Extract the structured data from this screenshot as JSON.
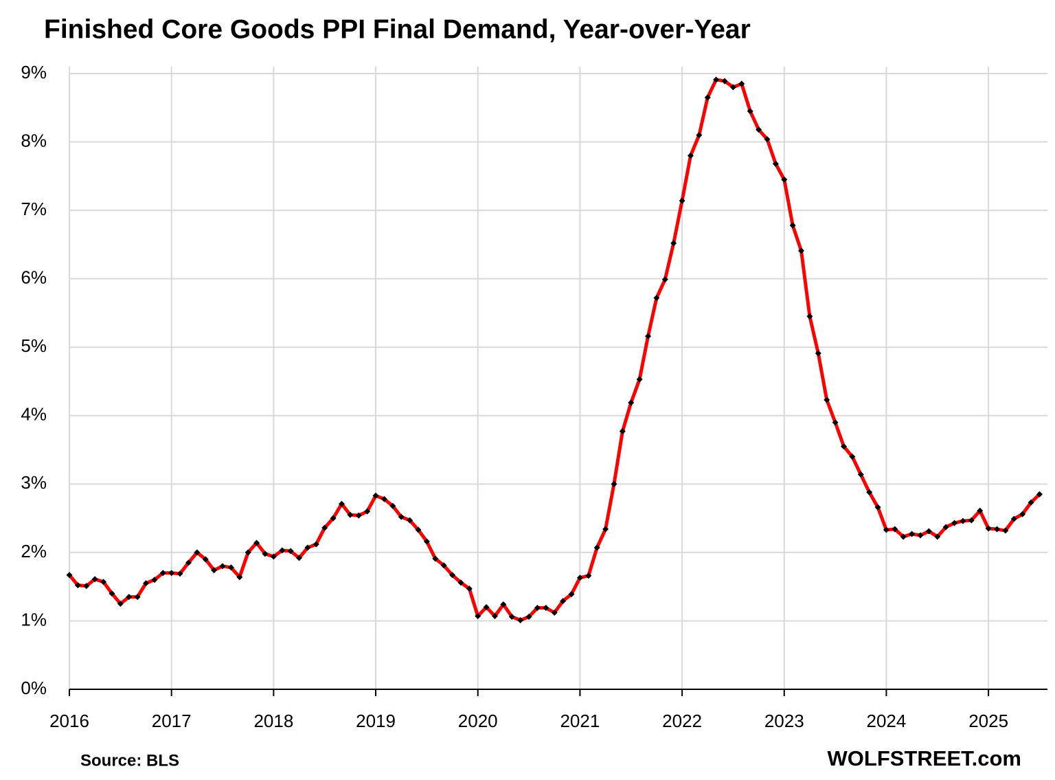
{
  "chart_data": {
    "type": "line",
    "title": "Finished Core Goods PPI Final Demand, Year-over-Year",
    "source": "Source: BLS",
    "credit": "WOLFSTREET.com",
    "categories": [
      "2016",
      null,
      null,
      null,
      null,
      null,
      null,
      null,
      null,
      null,
      null,
      null,
      "2017",
      null,
      null,
      null,
      null,
      null,
      null,
      null,
      null,
      null,
      null,
      null,
      "2018",
      null,
      null,
      null,
      null,
      null,
      null,
      null,
      null,
      null,
      null,
      null,
      "2019",
      null,
      null,
      null,
      null,
      null,
      null,
      null,
      null,
      null,
      null,
      null,
      "2020",
      null,
      null,
      null,
      null,
      null,
      null,
      null,
      null,
      null,
      null,
      null,
      "2021",
      null,
      null,
      null,
      null,
      null,
      null,
      null,
      null,
      null,
      null,
      null,
      "2022",
      null,
      null,
      null,
      null,
      null,
      null,
      null,
      null,
      null,
      null,
      null,
      "2023",
      null,
      null,
      null,
      null,
      null,
      null,
      null,
      null,
      null,
      null,
      null,
      "2024",
      null,
      null,
      null,
      null,
      null,
      null,
      null,
      null,
      null,
      null,
      null,
      "2025",
      null,
      null,
      null,
      null,
      null,
      null
    ],
    "values": [
      1.67,
      1.52,
      1.51,
      1.61,
      1.57,
      1.4,
      1.25,
      1.35,
      1.35,
      1.55,
      1.6,
      1.7,
      1.7,
      1.69,
      1.85,
      2.0,
      1.9,
      1.74,
      1.8,
      1.78,
      1.64,
      2.0,
      2.14,
      1.98,
      1.94,
      2.03,
      2.02,
      1.92,
      2.07,
      2.12,
      2.36,
      2.5,
      2.71,
      2.55,
      2.54,
      2.6,
      2.83,
      2.78,
      2.68,
      2.52,
      2.47,
      2.33,
      2.16,
      1.91,
      1.81,
      1.67,
      1.56,
      1.47,
      1.07,
      1.2,
      1.07,
      1.24,
      1.06,
      1.01,
      1.06,
      1.19,
      1.19,
      1.12,
      1.29,
      1.39,
      1.63,
      1.66,
      2.07,
      2.34,
      3.0,
      3.77,
      4.19,
      4.53,
      5.16,
      5.72,
      5.99,
      6.52,
      7.14,
      7.8,
      8.1,
      8.65,
      8.91,
      8.89,
      8.8,
      8.85,
      8.45,
      8.18,
      8.04,
      7.68,
      7.45,
      6.78,
      6.41,
      5.45,
      4.91,
      4.23,
      3.9,
      3.55,
      3.4,
      3.14,
      2.88,
      2.66,
      2.33,
      2.34,
      2.23,
      2.27,
      2.25,
      2.31,
      2.23,
      2.37,
      2.43,
      2.46,
      2.47,
      2.61,
      2.35,
      2.34,
      2.32,
      2.49,
      2.56,
      2.73,
      2.85
    ],
    "color": "#ff0000",
    "marker_color": "#000000",
    "ylim": [
      0,
      9
    ],
    "yticks": [
      {
        "value": 0,
        "label": "0%"
      },
      {
        "value": 1,
        "label": "1%"
      },
      {
        "value": 2,
        "label": "2%"
      },
      {
        "value": 3,
        "label": "3%"
      },
      {
        "value": 4,
        "label": "4%"
      },
      {
        "value": 5,
        "label": "5%"
      },
      {
        "value": 6,
        "label": "6%"
      },
      {
        "value": 7,
        "label": "7%"
      },
      {
        "value": 8,
        "label": "8%"
      },
      {
        "value": 9,
        "label": "9%"
      }
    ],
    "grid": true
  }
}
